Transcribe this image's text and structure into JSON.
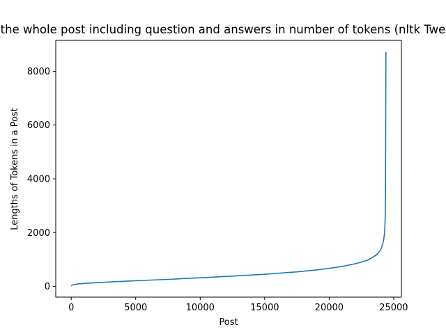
{
  "chart_data": {
    "type": "line",
    "title": "the whole post including question and answers in number of tokens (nltk Twe",
    "xlabel": "Post",
    "ylabel": "Lengths of Tokens in a Post",
    "xlim": [
      -1200,
      25600
    ],
    "ylim": [
      -400,
      9150
    ],
    "xticks": [
      0,
      5000,
      10000,
      15000,
      20000,
      25000
    ],
    "yticks": [
      0,
      2000,
      4000,
      6000,
      8000
    ],
    "grid": false,
    "series": [
      {
        "color": "#1f77b4",
        "x": [
          0,
          50,
          150,
          300,
          500,
          1000,
          2000,
          3000,
          5000,
          7500,
          10000,
          12500,
          15000,
          17500,
          19000,
          20000,
          21000,
          22000,
          22500,
          23000,
          23300,
          23600,
          23800,
          23950,
          24050,
          24120,
          24180,
          24230,
          24270,
          24300,
          24320,
          24340,
          24350,
          24360,
          24370,
          24375,
          24380,
          24385,
          24390,
          24395,
          24400
        ],
        "y": [
          20,
          40,
          60,
          75,
          90,
          110,
          140,
          165,
          210,
          260,
          320,
          380,
          450,
          540,
          610,
          670,
          740,
          840,
          900,
          980,
          1060,
          1150,
          1240,
          1330,
          1430,
          1530,
          1630,
          1760,
          1900,
          2050,
          2250,
          2500,
          2800,
          3200,
          4000,
          4700,
          5500,
          6300,
          7200,
          8000,
          8720
        ]
      }
    ]
  }
}
